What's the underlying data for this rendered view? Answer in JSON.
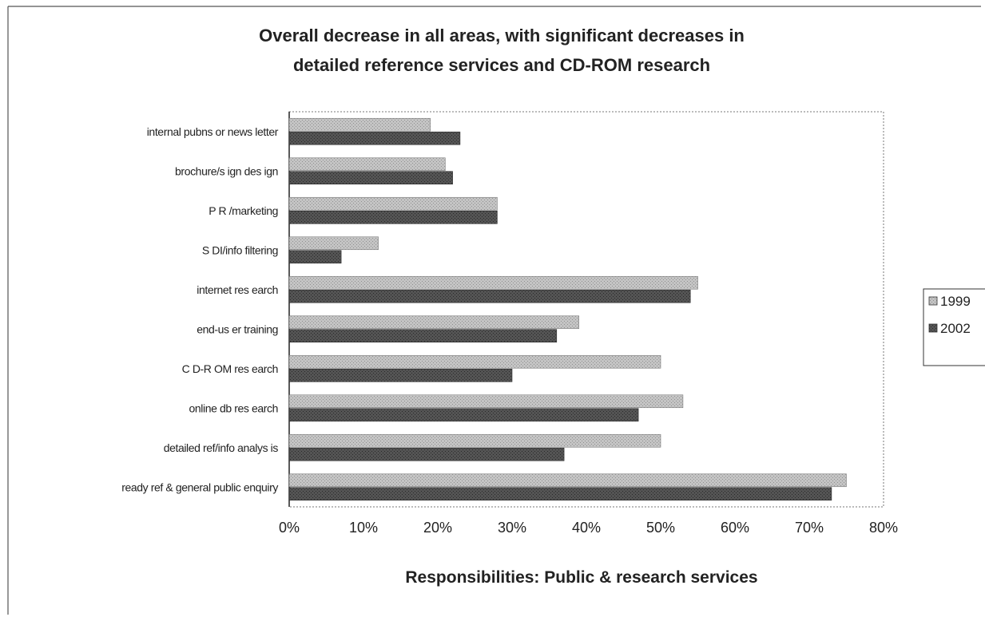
{
  "chart_data": {
    "type": "bar",
    "orientation": "horizontal",
    "title": "Overall decrease in all areas, with significant decreases in detailed reference services and CD-ROM research",
    "title_lines": [
      "Overall decrease in all areas, with significant decreases in",
      "detailed reference services and CD-ROM research"
    ],
    "xlabel": "Responsibilities: Public & research services",
    "ylabel": "",
    "xlim": [
      0,
      80
    ],
    "x_ticks": [
      "0%",
      "10%",
      "20%",
      "30%",
      "40%",
      "50%",
      "60%",
      "70%",
      "80%"
    ],
    "grid": false,
    "legend_position": "right",
    "categories": [
      "internal pubns or news letter",
      "brochure/s ign des ign",
      "P R /marketing",
      "S DI/info filtering",
      "internet res earch",
      "end-us er training",
      "C D-R OM res earch",
      "online db res earch",
      "detailed ref/info analys is",
      "ready ref & general public enquiry"
    ],
    "series": [
      {
        "name": "1999",
        "color": "#bdbdbd",
        "values": [
          19,
          21,
          28,
          12,
          55,
          39,
          50,
          53,
          50,
          75
        ]
      },
      {
        "name": "2002",
        "color": "#505050",
        "values": [
          23,
          22,
          28,
          7,
          54,
          36,
          30,
          47,
          37,
          73
        ]
      }
    ]
  }
}
